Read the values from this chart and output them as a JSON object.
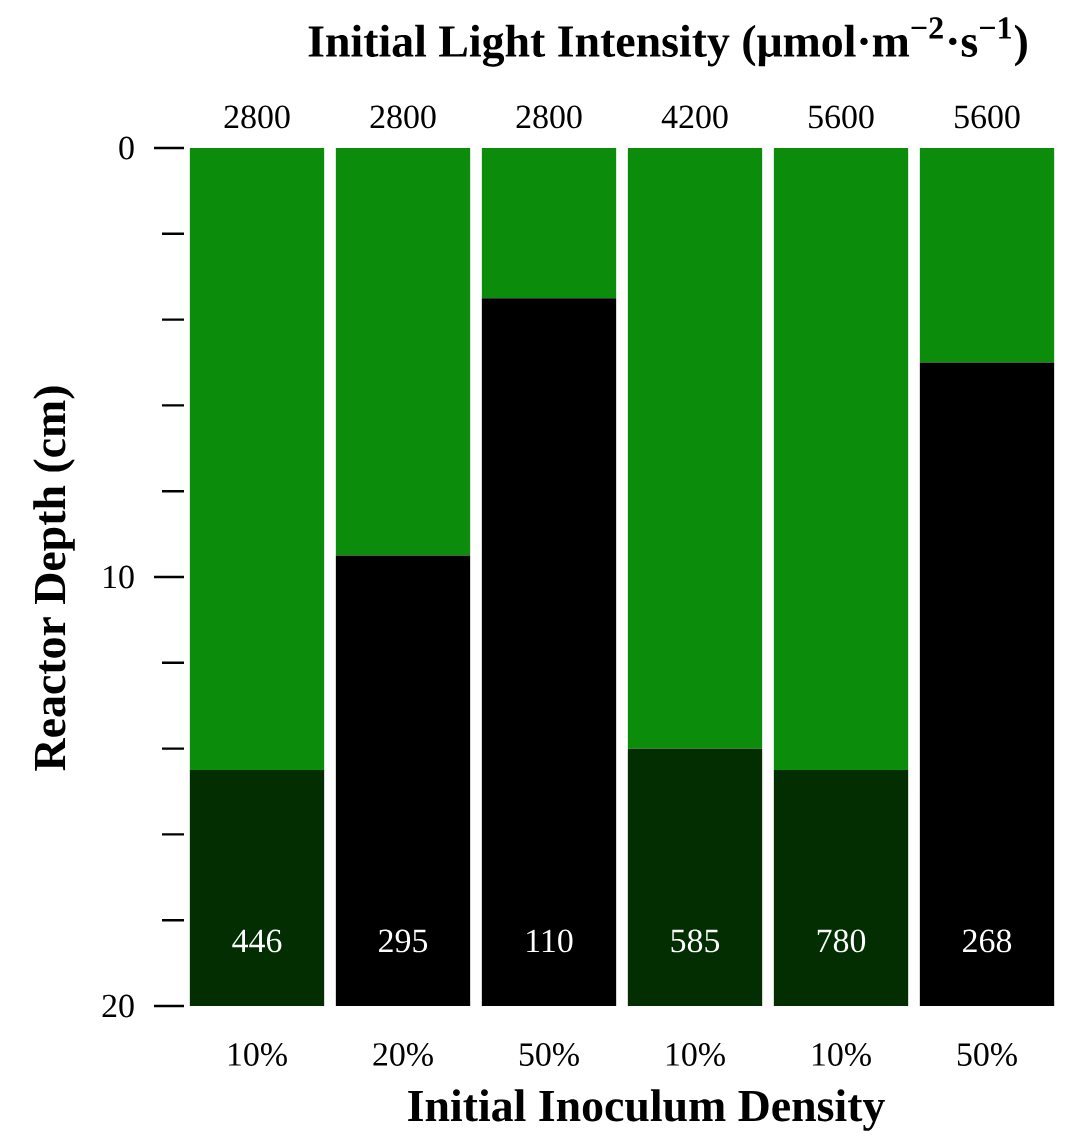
{
  "chart_data": {
    "type": "bar",
    "stacked": true,
    "x2label": "Initial Light Intensity (μmol·m$^{−2}$·s$^{−1}$)",
    "xlabel": "Initial Inoculum Density",
    "ylabel": "Reactor Depth (cm)",
    "categories": [
      "10%",
      "20%",
      "50%",
      "10%",
      "10%",
      "50%"
    ],
    "annotations": [
      "2800",
      "2800",
      "2800",
      "4200",
      "5600",
      "5600",
      "446",
      "295",
      "110",
      "585",
      "780",
      "268"
    ],
    "ylim": [
      20,
      0
    ],
    "yticks": [
      0,
      {
        "value": 2,
        "label": null
      },
      {
        "value": 4,
        "label": null
      },
      {
        "value": 6,
        "label": null
      },
      {
        "value": 8,
        "label": null
      },
      10,
      {
        "value": 12,
        "label": null
      },
      {
        "value": 14,
        "label": null
      },
      {
        "value": 16,
        "label": null
      },
      {
        "value": 18,
        "label": null
      },
      20
    ],
    "series": [
      {
        "color": "#0b8c0b",
        "values": [
          14.5,
          9.5,
          3.5,
          14,
          14.5,
          5
        ]
      },
      {
        "colors": [
          "#022e02",
          "#000000",
          "#000000",
          "#022e02",
          "#022e02",
          "#000000"
        ],
        "values": [
          5.5,
          10.5,
          16.5,
          6,
          5.5,
          15
        ]
      }
    ]
  }
}
